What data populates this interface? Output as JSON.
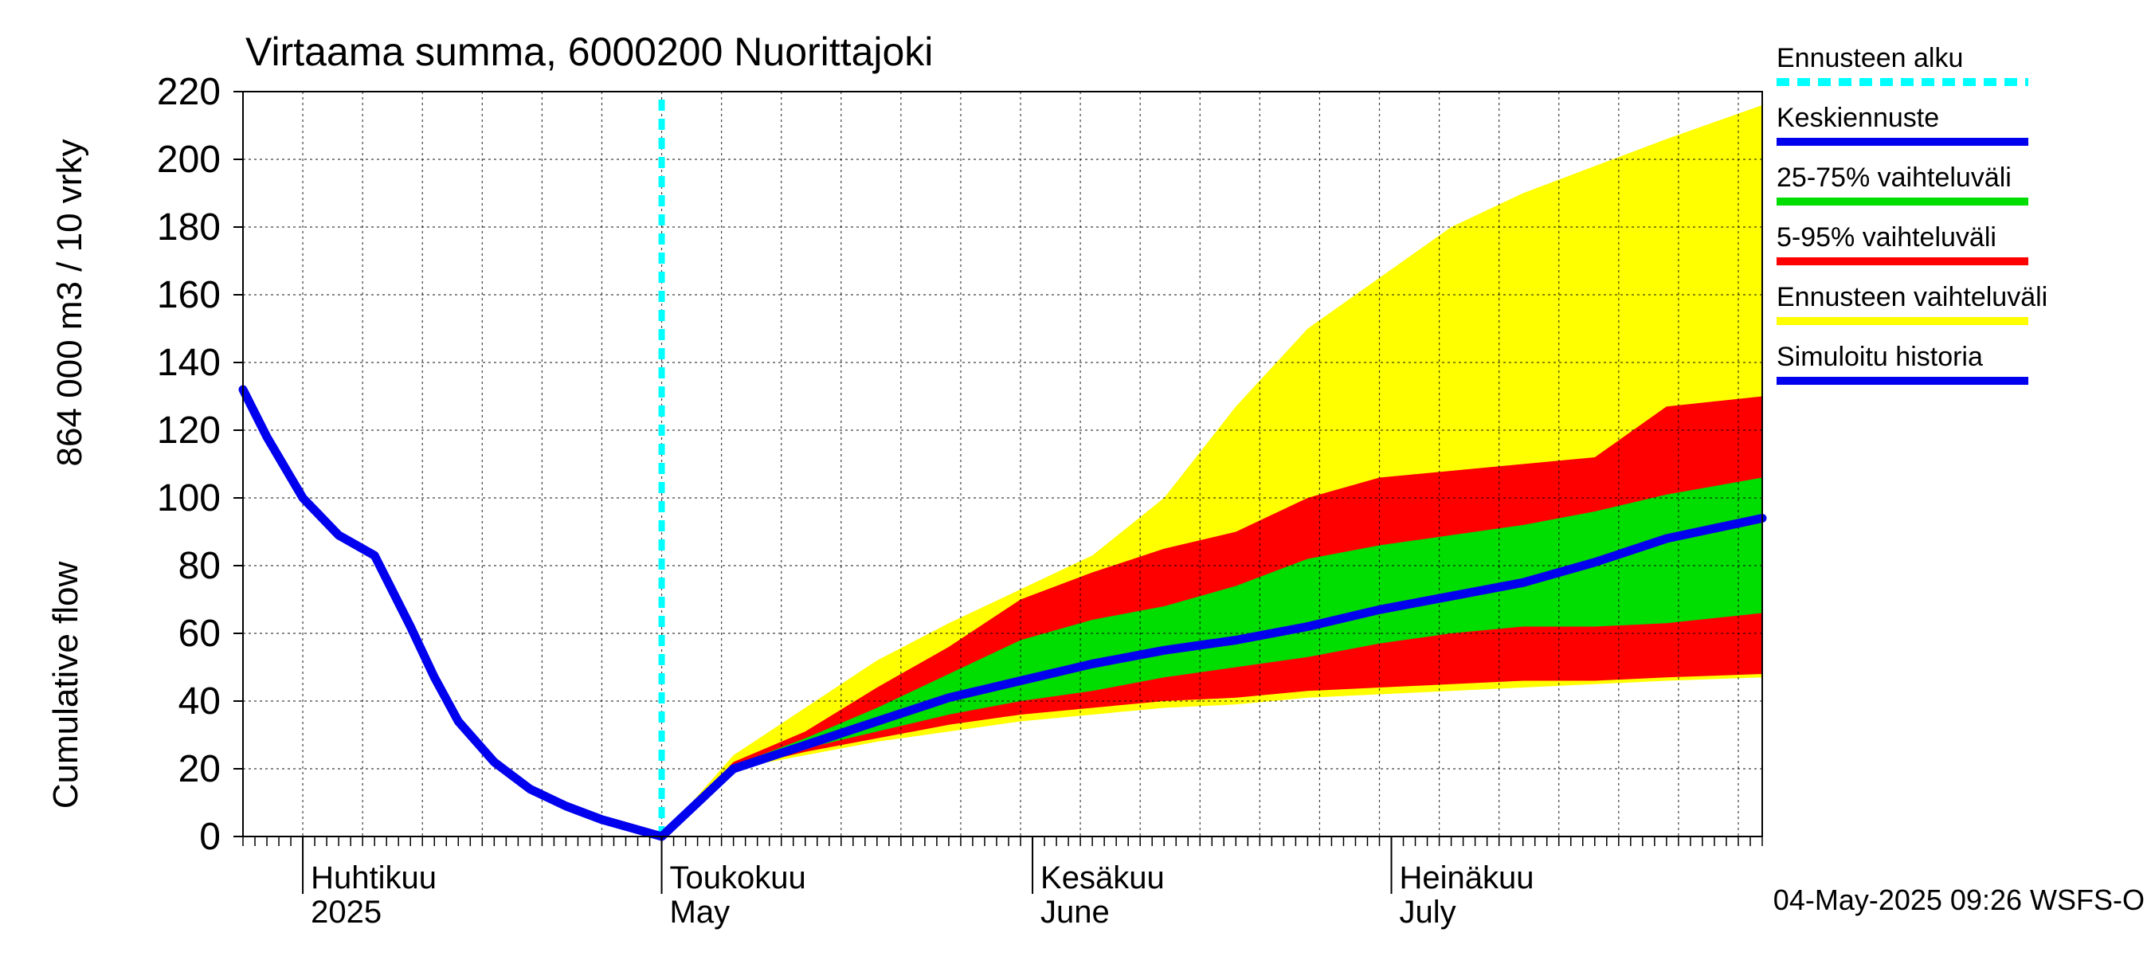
{
  "chart_data": {
    "type": "area",
    "title": "Virtaama summa, 6000200 Nuorittajoki",
    "ylabel_line1": "864 000 m3 / 10 vrky",
    "ylabel_line2": "Cumulative flow",
    "ylim": [
      0,
      220
    ],
    "y_ticks": [
      0,
      20,
      40,
      60,
      80,
      100,
      120,
      140,
      160,
      180,
      200,
      220
    ],
    "x_range": [
      "2025-03-27",
      "2025-08-01"
    ],
    "grid": true,
    "legend_position": "right",
    "month_labels": [
      {
        "fi": "Huhtikuu",
        "en": "2025",
        "date": "2025-04-01"
      },
      {
        "fi": "Toukokuu",
        "en": "May",
        "date": "2025-05-01"
      },
      {
        "fi": "Kesäkuu",
        "en": "June",
        "date": "2025-06-01"
      },
      {
        "fi": "Heinäkuu",
        "en": "July",
        "date": "2025-07-01"
      }
    ],
    "forecast_start": "2025-05-01",
    "footer": "04-May-2025 09:26 WSFS-O",
    "legend": [
      {
        "label": "Ennusteen alku",
        "color": "#00ffff",
        "style": "dashed"
      },
      {
        "label": "Keskiennuste",
        "color": "#0000ee",
        "style": "solid"
      },
      {
        "label": "25-75% vaihteluväli",
        "color": "#00dd00",
        "style": "solid"
      },
      {
        "label": "5-95% vaihteluväli",
        "color": "#ff0000",
        "style": "solid"
      },
      {
        "label": "Ennusteen vaihteluväli",
        "color": "#ffff00",
        "style": "solid"
      },
      {
        "label": "Simuloitu historia",
        "color": "#0000ee",
        "style": "solid"
      }
    ],
    "history": {
      "x": [
        "2025-03-27",
        "2025-03-29",
        "2025-04-01",
        "2025-04-04",
        "2025-04-07",
        "2025-04-10",
        "2025-04-12",
        "2025-04-14",
        "2025-04-17",
        "2025-04-20",
        "2025-04-23",
        "2025-04-26",
        "2025-04-29",
        "2025-05-01"
      ],
      "y": [
        132,
        118,
        100,
        89,
        83,
        62,
        47,
        34,
        22,
        14,
        9,
        5,
        2,
        0
      ]
    },
    "forecast_x": [
      "2025-05-01",
      "2025-05-07",
      "2025-05-13",
      "2025-05-19",
      "2025-05-25",
      "2025-05-31",
      "2025-06-06",
      "2025-06-12",
      "2025-06-18",
      "2025-06-24",
      "2025-06-30",
      "2025-07-06",
      "2025-07-12",
      "2025-07-18",
      "2025-07-24",
      "2025-08-01"
    ],
    "ensemble_max": [
      0,
      24,
      38,
      52,
      63,
      73,
      83,
      100,
      127,
      150,
      165,
      180,
      190,
      198,
      206,
      216
    ],
    "p95": [
      0,
      22,
      31,
      44,
      56,
      70,
      78,
      85,
      90,
      100,
      106,
      108,
      110,
      112,
      127,
      130
    ],
    "p75": [
      0,
      21,
      29,
      38,
      48,
      58,
      64,
      68,
      74,
      82,
      86,
      89,
      92,
      96,
      101,
      106
    ],
    "median": [
      0,
      20,
      27,
      34,
      41,
      46,
      51,
      55,
      58,
      62,
      67,
      71,
      75,
      81,
      88,
      94
    ],
    "p25": [
      0,
      20,
      26,
      31,
      36,
      40,
      43,
      47,
      50,
      53,
      57,
      60,
      62,
      62,
      63,
      66
    ],
    "p5": [
      0,
      20,
      25,
      29,
      33,
      36,
      38,
      40,
      41,
      43,
      44,
      45,
      46,
      46,
      47,
      48
    ],
    "ensemble_min": [
      0,
      20,
      24,
      28,
      31,
      34,
      36,
      38,
      39,
      41,
      42,
      43,
      44,
      45,
      46,
      47
    ]
  }
}
